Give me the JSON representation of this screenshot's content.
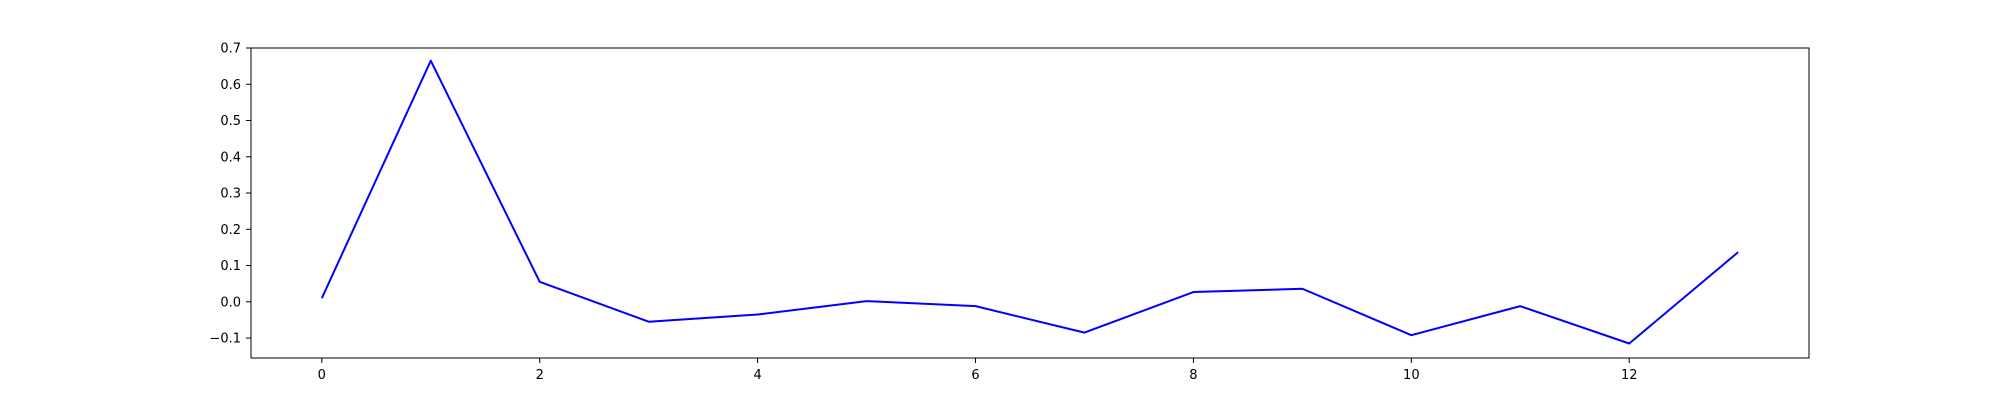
{
  "chart_data": {
    "type": "line",
    "title": "",
    "xlabel": "",
    "ylabel": "",
    "xlim": [
      -0.65,
      13.65
    ],
    "ylim": [
      -0.155,
      0.7
    ],
    "xticks": [
      0,
      2,
      4,
      6,
      8,
      10,
      12
    ],
    "xtick_labels": [
      "0",
      "2",
      "4",
      "6",
      "8",
      "10",
      "12"
    ],
    "yticks": [
      -0.1,
      0.0,
      0.1,
      0.2,
      0.3,
      0.4,
      0.5,
      0.6,
      0.7
    ],
    "ytick_labels": [
      "−0.1",
      "0.0",
      "0.1",
      "0.2",
      "0.3",
      "0.4",
      "0.5",
      "0.6",
      "0.7"
    ],
    "grid": false,
    "legend": "none",
    "series": [
      {
        "color": "#0000ff",
        "x": [
          0,
          1,
          2,
          3,
          4,
          5,
          6,
          7,
          8,
          9,
          10,
          11,
          12,
          13
        ],
        "values": [
          0.01,
          0.665,
          0.055,
          -0.055,
          -0.035,
          0.002,
          -0.012,
          -0.085,
          0.027,
          0.036,
          -0.092,
          -0.012,
          -0.115,
          0.137
        ]
      }
    ]
  }
}
